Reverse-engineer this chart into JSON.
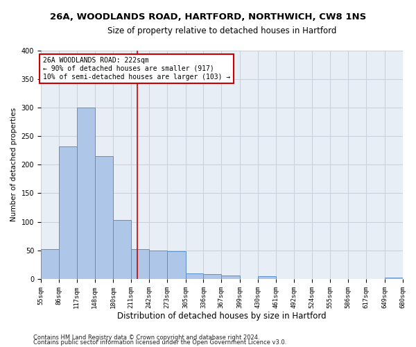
{
  "title1": "26A, WOODLANDS ROAD, HARTFORD, NORTHWICH, CW8 1NS",
  "title2": "Size of property relative to detached houses in Hartford",
  "xlabel": "Distribution of detached houses by size in Hartford",
  "ylabel": "Number of detached properties",
  "bar_edges": [
    55,
    86,
    117,
    148,
    180,
    211,
    242,
    273,
    305,
    336,
    367,
    399,
    430,
    461,
    492,
    524,
    555,
    586,
    617,
    649,
    680
  ],
  "bar_heights": [
    52,
    232,
    300,
    215,
    103,
    52,
    50,
    48,
    10,
    9,
    6,
    0,
    5,
    0,
    0,
    0,
    0,
    0,
    0,
    3
  ],
  "bar_color": "#aec6e8",
  "bar_edgecolor": "#5b8fc9",
  "property_line_x": 222,
  "property_line_color": "#cc0000",
  "annotation_line1": "26A WOODLANDS ROAD: 222sqm",
  "annotation_line2": "← 90% of detached houses are smaller (917)",
  "annotation_line3": "10% of semi-detached houses are larger (103) →",
  "annotation_box_edgecolor": "#cc0000",
  "annotation_box_facecolor": "white",
  "ylim": [
    0,
    400
  ],
  "yticks": [
    0,
    50,
    100,
    150,
    200,
    250,
    300,
    350,
    400
  ],
  "grid_color": "#c8d0dc",
  "background_color": "#e8eef5",
  "footer1": "Contains HM Land Registry data © Crown copyright and database right 2024.",
  "footer2": "Contains public sector information licensed under the Open Government Licence v3.0.",
  "title1_fontsize": 9.5,
  "title2_fontsize": 8.5,
  "xlabel_fontsize": 8.5,
  "ylabel_fontsize": 7.5,
  "tick_fontsize": 6.5,
  "annotation_fontsize": 7,
  "footer_fontsize": 6
}
